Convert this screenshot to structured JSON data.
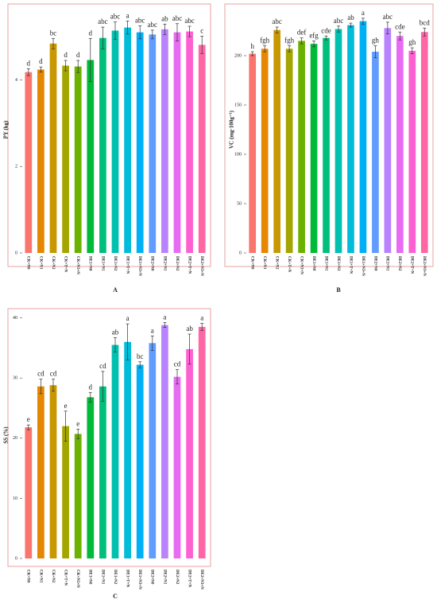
{
  "chart_data": [
    {
      "type": "bar",
      "label": "A",
      "y_label": "PY (kg)",
      "categories": [
        "CK+N0",
        "CK+N1",
        "CK+N2",
        "CK+T+N",
        "CK+N3+N",
        "DE1+N0",
        "DE1+N1",
        "DE1+N2",
        "DE1+T+N",
        "DE1+N3+N",
        "DE2+N0",
        "DE2+N1",
        "DE2+N2",
        "DE2+T+N",
        "DE2+N3+N"
      ],
      "values": [
        4.18,
        4.24,
        4.84,
        4.33,
        4.31,
        4.46,
        4.97,
        5.14,
        5.21,
        5.1,
        5.05,
        5.17,
        5.1,
        5.12,
        4.81
      ],
      "errors": [
        0.08,
        0.06,
        0.12,
        0.12,
        0.14,
        0.5,
        0.25,
        0.2,
        0.15,
        0.15,
        0.1,
        0.12,
        0.2,
        0.12,
        0.2
      ],
      "letters": [
        "d",
        "d",
        "bc",
        "d",
        "d",
        "d",
        "abc",
        "abc",
        "a",
        "abc",
        "abc",
        "ab",
        "abc",
        "abc",
        "c"
      ],
      "colors": [
        "#F8766D",
        "#E58700",
        "#C99800",
        "#A3A500",
        "#6BB100",
        "#00BA38",
        "#00BF7D",
        "#00C0AF",
        "#00BCD8",
        "#00B0F6",
        "#619CFF",
        "#B983FF",
        "#E76BF3",
        "#FD61D1",
        "#FF67A4"
      ],
      "ylim": [
        0,
        5.7
      ],
      "yticks": [
        0,
        2,
        4
      ]
    },
    {
      "type": "bar",
      "label": "B",
      "y_label": "VC (mg·100g⁻¹)",
      "categories": [
        "CK+N0",
        "CK+N1",
        "CK+N2",
        "CK+T+N",
        "CK+N3+N",
        "DE1+N0",
        "DE1+N1",
        "DE1+N2",
        "DE1+T+N",
        "DE1+N3+N",
        "DE2+N0",
        "DE2+N1",
        "DE2+N2",
        "DE2+T+N",
        "DE2+N3+N"
      ],
      "values": [
        202,
        207,
        226,
        207,
        215,
        212,
        218,
        227,
        231,
        235,
        204,
        228,
        220,
        205,
        224
      ],
      "errors": [
        2,
        3,
        3,
        3,
        3,
        3,
        2,
        3,
        2,
        3,
        6,
        6,
        4,
        3,
        4
      ],
      "letters": [
        "h",
        "fgh",
        "abc",
        "fgh",
        "def",
        "efg",
        "cde",
        "abc",
        "ab",
        "a",
        "gh",
        "abc",
        "cde",
        "gh",
        "bcd"
      ],
      "colors": [
        "#F8766D",
        "#E58700",
        "#C99800",
        "#A3A500",
        "#6BB100",
        "#00BA38",
        "#00BF7D",
        "#00C0AF",
        "#00BCD8",
        "#00B0F6",
        "#619CFF",
        "#B983FF",
        "#E76BF3",
        "#FD61D1",
        "#FF67A4"
      ],
      "ylim": [
        0,
        250
      ],
      "yticks": [
        0,
        50,
        100,
        150,
        200
      ]
    },
    {
      "type": "bar",
      "label": "C",
      "y_label": "SS (%)",
      "categories": [
        "CK+N0",
        "CK+N1",
        "CK+N2",
        "CK+T+N",
        "CK+N3+N",
        "DE1+N0",
        "DE1+N1",
        "DE1+N2",
        "DE1+T+N",
        "DE1+N3+N",
        "DE2+N0",
        "DE2+N1",
        "DE2+N2",
        "DE2+T+N",
        "DE2+N3+N"
      ],
      "values": [
        21.8,
        28.6,
        28.8,
        22,
        20.7,
        26.8,
        28.6,
        35.5,
        36,
        32.2,
        35.8,
        38.8,
        30.2,
        34.8,
        38.5
      ],
      "errors": [
        0.4,
        1.2,
        1,
        2.5,
        0.8,
        0.8,
        2.5,
        1.2,
        3,
        0.5,
        1.2,
        0.4,
        1.2,
        2.5,
        0.6
      ],
      "letters": [
        "e",
        "cd",
        "cd",
        "e",
        "e",
        "d",
        "cd",
        "ab",
        "a",
        "bc",
        "a",
        "a",
        "cd",
        "ab",
        "a"
      ],
      "colors": [
        "#F8766D",
        "#E58700",
        "#C99800",
        "#A3A500",
        "#6BB100",
        "#00BA38",
        "#00BF7D",
        "#00C0AF",
        "#00BCD8",
        "#00B0F6",
        "#619CFF",
        "#B983FF",
        "#E76BF3",
        "#FD61D1",
        "#FF67A4"
      ],
      "ylim": [
        0,
        41
      ],
      "yticks": [
        0,
        10,
        20,
        30,
        40
      ]
    }
  ]
}
